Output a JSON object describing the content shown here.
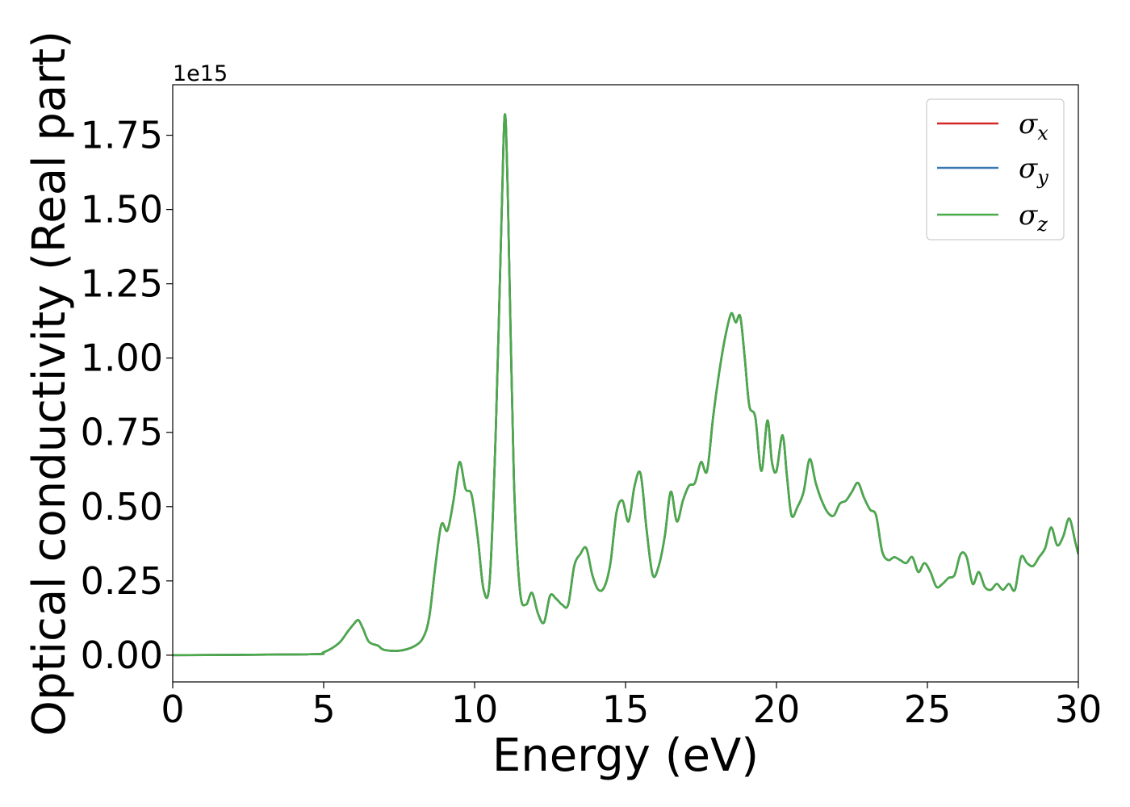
{
  "chart_data": {
    "type": "line",
    "xlabel": "Energy (eV)",
    "ylabel": "Optical conductivity (Real part)",
    "y_offset_label": "1e15",
    "y_multiplier": 1000000000000000.0,
    "xlim": [
      0,
      30
    ],
    "ylim": [
      -0.09,
      1.92
    ],
    "x_ticks": [
      0,
      5,
      10,
      15,
      20,
      25,
      30
    ],
    "x_tick_labels": [
      "0",
      "5",
      "10",
      "15",
      "20",
      "25",
      "30"
    ],
    "y_ticks": [
      0.0,
      0.25,
      0.5,
      0.75,
      1.0,
      1.25,
      1.5,
      1.75
    ],
    "y_tick_labels": [
      "0.00",
      "0.25",
      "0.50",
      "0.75",
      "1.00",
      "1.25",
      "1.50",
      "1.75"
    ],
    "grid": false,
    "legend_placement": "top-right",
    "series": [
      {
        "name": "σx",
        "symbol": "σ",
        "subscript": "x",
        "color": "#d62728",
        "x": [
          0,
          4.5,
          5.0,
          5.5,
          5.8,
          6.0,
          6.15,
          6.3,
          6.5,
          6.8,
          7.0,
          7.5,
          8.0,
          8.3,
          8.5,
          8.7,
          8.9,
          9.1,
          9.3,
          9.5,
          9.7,
          9.9,
          10.1,
          10.3,
          10.5,
          10.7,
          10.9,
          11.0,
          11.1,
          11.3,
          11.5,
          11.7,
          11.9,
          12.1,
          12.3,
          12.5,
          12.7,
          12.9,
          13.1,
          13.3,
          13.5,
          13.7,
          13.9,
          14.1,
          14.3,
          14.5,
          14.7,
          14.9,
          15.1,
          15.3,
          15.5,
          15.7,
          15.9,
          16.1,
          16.3,
          16.5,
          16.7,
          16.9,
          17.1,
          17.3,
          17.5,
          17.7,
          17.9,
          18.1,
          18.3,
          18.5,
          18.65,
          18.8,
          18.95,
          19.1,
          19.3,
          19.5,
          19.7,
          19.85,
          20.0,
          20.2,
          20.35,
          20.5,
          20.7,
          20.9,
          21.1,
          21.3,
          21.5,
          21.7,
          21.9,
          22.1,
          22.3,
          22.5,
          22.7,
          22.9,
          23.1,
          23.3,
          23.5,
          23.7,
          23.9,
          24.1,
          24.3,
          24.5,
          24.7,
          24.9,
          25.1,
          25.3,
          25.5,
          25.7,
          25.9,
          26.1,
          26.3,
          26.5,
          26.7,
          26.9,
          27.1,
          27.3,
          27.5,
          27.7,
          27.9,
          28.1,
          28.3,
          28.5,
          28.7,
          28.9,
          29.1,
          29.3,
          29.5,
          29.7,
          29.9,
          30.0
        ],
        "y": [
          0.0,
          0.003,
          0.01,
          0.04,
          0.08,
          0.105,
          0.118,
          0.09,
          0.045,
          0.032,
          0.018,
          0.015,
          0.03,
          0.06,
          0.13,
          0.3,
          0.44,
          0.42,
          0.52,
          0.65,
          0.56,
          0.54,
          0.4,
          0.22,
          0.25,
          0.75,
          1.5,
          1.82,
          1.55,
          0.6,
          0.22,
          0.17,
          0.21,
          0.14,
          0.11,
          0.2,
          0.19,
          0.17,
          0.17,
          0.3,
          0.34,
          0.36,
          0.27,
          0.22,
          0.23,
          0.31,
          0.48,
          0.52,
          0.45,
          0.57,
          0.61,
          0.42,
          0.27,
          0.3,
          0.4,
          0.55,
          0.45,
          0.52,
          0.57,
          0.58,
          0.65,
          0.62,
          0.8,
          0.95,
          1.07,
          1.15,
          1.12,
          1.14,
          1.0,
          0.84,
          0.8,
          0.62,
          0.79,
          0.65,
          0.62,
          0.74,
          0.6,
          0.47,
          0.5,
          0.55,
          0.66,
          0.58,
          0.52,
          0.48,
          0.47,
          0.51,
          0.52,
          0.55,
          0.58,
          0.53,
          0.49,
          0.47,
          0.35,
          0.32,
          0.33,
          0.32,
          0.31,
          0.33,
          0.28,
          0.31,
          0.28,
          0.23,
          0.24,
          0.26,
          0.27,
          0.34,
          0.33,
          0.24,
          0.28,
          0.23,
          0.22,
          0.24,
          0.22,
          0.24,
          0.22,
          0.33,
          0.31,
          0.3,
          0.33,
          0.36,
          0.43,
          0.37,
          0.4,
          0.46,
          0.38,
          0.34
        ]
      },
      {
        "name": "σy",
        "symbol": "σ",
        "subscript": "y",
        "color": "#3a78b1",
        "same_as": "σx"
      },
      {
        "name": "σz",
        "symbol": "σ",
        "subscript": "z",
        "color": "#4aaa4a",
        "same_as": "σx"
      }
    ]
  }
}
